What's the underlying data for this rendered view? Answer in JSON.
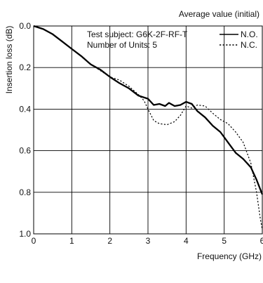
{
  "chart_data": {
    "type": "line",
    "header_note": "Average value (initial)",
    "annotations": [
      "Test subject: G6K-2F-RF-T",
      "Number of Units: 5"
    ],
    "xlabel": "Frequency (GHz)",
    "ylabel": "Insertion loss (dB)",
    "xlim": [
      0,
      6
    ],
    "ylim": [
      0,
      1.0
    ],
    "y_inverted": true,
    "grid": true,
    "x_ticks": [
      "0",
      "1",
      "2",
      "3",
      "4",
      "5",
      "6"
    ],
    "y_ticks": [
      "0.0",
      "0.2",
      "0.4",
      "0.6",
      "0.8",
      "1.0"
    ],
    "legend_position": "top-right",
    "series": [
      {
        "name": "N.O.",
        "style": "solid",
        "x": [
          0,
          0.25,
          0.5,
          0.75,
          1.0,
          1.25,
          1.5,
          1.75,
          2.0,
          2.25,
          2.5,
          2.75,
          3.0,
          3.15,
          3.3,
          3.45,
          3.55,
          3.7,
          3.85,
          4.0,
          4.15,
          4.3,
          4.5,
          4.7,
          4.9,
          5.1,
          5.3,
          5.5,
          5.7,
          5.85,
          6.0
        ],
        "y": [
          0.0,
          0.015,
          0.04,
          0.075,
          0.11,
          0.145,
          0.185,
          0.21,
          0.245,
          0.275,
          0.3,
          0.335,
          0.35,
          0.38,
          0.375,
          0.385,
          0.37,
          0.385,
          0.38,
          0.365,
          0.375,
          0.41,
          0.44,
          0.48,
          0.51,
          0.56,
          0.61,
          0.64,
          0.68,
          0.74,
          0.81
        ]
      },
      {
        "name": "N.C.",
        "style": "dotted",
        "x": [
          0,
          0.25,
          0.5,
          0.75,
          1.0,
          1.25,
          1.5,
          1.75,
          2.0,
          2.25,
          2.5,
          2.75,
          2.9,
          3.0,
          3.15,
          3.3,
          3.5,
          3.7,
          3.85,
          4.0,
          4.15,
          4.3,
          4.5,
          4.7,
          4.9,
          5.1,
          5.3,
          5.5,
          5.7,
          5.85,
          5.95,
          6.0
        ],
        "y": [
          0.0,
          0.015,
          0.04,
          0.075,
          0.11,
          0.145,
          0.185,
          0.215,
          0.245,
          0.26,
          0.29,
          0.33,
          0.36,
          0.4,
          0.455,
          0.47,
          0.475,
          0.46,
          0.43,
          0.385,
          0.395,
          0.38,
          0.385,
          0.42,
          0.45,
          0.47,
          0.51,
          0.56,
          0.66,
          0.8,
          0.93,
          0.98
        ]
      }
    ]
  }
}
